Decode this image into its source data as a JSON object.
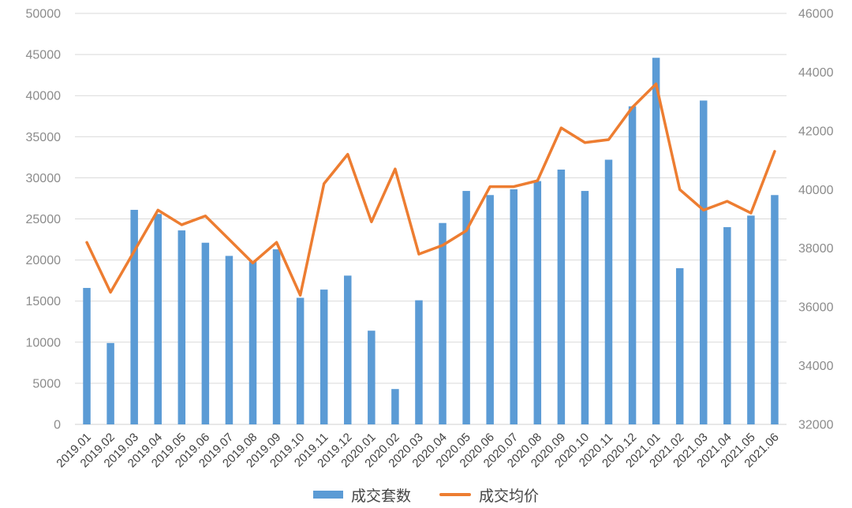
{
  "chart_data": {
    "type": "bar",
    "combo": "bar+line",
    "title": "",
    "categories": [
      "2019.01",
      "2019.02",
      "2019.03",
      "2019.04",
      "2019.05",
      "2019.06",
      "2019.07",
      "2019.08",
      "2019.09",
      "2019.10",
      "2019.11",
      "2019.12",
      "2020.01",
      "2020.02",
      "2020.03",
      "2020.04",
      "2020.05",
      "2020.06",
      "2020.07",
      "2020.08",
      "2020.09",
      "2020.10",
      "2020.11",
      "2020.12",
      "2021.01",
      "2021.02",
      "2021.03",
      "2021.04",
      "2021.05",
      "2021.06"
    ],
    "series": [
      {
        "name": "成交套数",
        "type": "bar",
        "axis": "left",
        "color": "#5B9BD5",
        "values": [
          16600,
          9900,
          26100,
          25600,
          23600,
          22100,
          20500,
          19800,
          21300,
          15400,
          16400,
          18100,
          11400,
          4300,
          15100,
          24500,
          28400,
          27900,
          28600,
          29600,
          31000,
          28400,
          32200,
          38700,
          44600,
          19000,
          39400,
          24000,
          25400,
          27900
        ]
      },
      {
        "name": "成交均价",
        "type": "line",
        "axis": "right",
        "color": "#ED7D31",
        "values": [
          38200,
          36500,
          37900,
          39300,
          38800,
          39100,
          38300,
          37500,
          38200,
          36400,
          40200,
          41200,
          38900,
          40700,
          37800,
          38100,
          38600,
          40100,
          40100,
          40300,
          42100,
          41600,
          41700,
          42800,
          43600,
          40000,
          39300,
          39600,
          39200,
          41300
        ]
      }
    ],
    "left_axis": {
      "min": 0,
      "max": 50000,
      "step": 5000,
      "tick_labels_top_to_bottom": [
        "50000",
        "45000",
        "40000",
        "35000",
        "30000",
        "25000",
        "20000",
        "15000",
        "10000",
        "5000",
        "0"
      ]
    },
    "right_axis": {
      "min": 32000,
      "max": 46000,
      "step": 2000,
      "tick_labels_top_to_bottom": [
        "46000",
        "44000",
        "42000",
        "40000",
        "38000",
        "36000",
        "34000",
        "32000"
      ]
    },
    "grid": true,
    "legend_position": "bottom"
  },
  "legend": {
    "bar_label": "成交套数",
    "line_label": "成交均价"
  },
  "colors": {
    "bar": "#5B9BD5",
    "line": "#ED7D31",
    "grid": "#d9d9d9",
    "y_tick_text": "#8c8c8c",
    "x_tick_text": "#404040",
    "legend_text": "#444444"
  }
}
